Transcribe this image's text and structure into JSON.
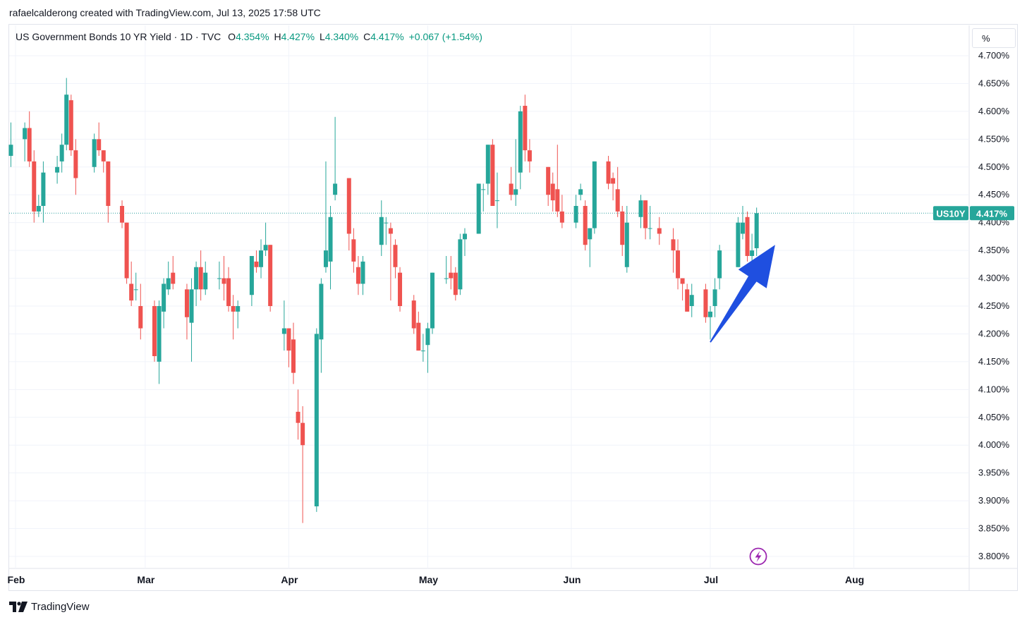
{
  "header": {
    "author_line": "rafaelcalderong created with TradingView.com, Jul 13, 2025 17:58 UTC"
  },
  "legend": {
    "symbol": "US Government Bonds 10 YR Yield · 1D · TVC",
    "o_label": "O",
    "o_value": "4.354%",
    "h_label": "H",
    "h_value": "4.427%",
    "l_label": "L",
    "l_value": "4.340%",
    "c_label": "C",
    "c_value": "4.417%",
    "change": "+0.067 (+1.54%)"
  },
  "scale_mode_button": "%",
  "price_tag": {
    "ticker": "US10Y",
    "value": "4.417%"
  },
  "footer": {
    "brand": "TradingView"
  },
  "colors": {
    "up": "#26a69a",
    "down": "#ef5350",
    "arrow": "#1f4fe0",
    "last_price_line": "#2a9d9e",
    "grid": "#f0f3fa",
    "lightning": "#9c27b0"
  },
  "icons": {
    "lightning": "lightning-icon",
    "logo": "tradingview-logo-icon"
  },
  "chart_data": {
    "type": "candlestick",
    "title": "US Government Bonds 10 YR Yield · 1D · TVC",
    "y_unit": "%",
    "ylim": [
      3.78,
      4.72
    ],
    "y_ticks": [
      "4.700%",
      "4.650%",
      "4.600%",
      "4.550%",
      "4.500%",
      "4.450%",
      "4.400%",
      "4.350%",
      "4.300%",
      "4.250%",
      "4.200%",
      "4.150%",
      "4.100%",
      "4.050%",
      "4.000%",
      "3.950%",
      "3.900%",
      "3.850%",
      "3.800%"
    ],
    "x_ticks": [
      {
        "label": "Feb",
        "date": "2025-02-01"
      },
      {
        "label": "Mar",
        "date": "2025-03-01"
      },
      {
        "label": "Apr",
        "date": "2025-04-01"
      },
      {
        "label": "May",
        "date": "2025-05-01"
      },
      {
        "label": "Jun",
        "date": "2025-06-01"
      },
      {
        "label": "Jul",
        "date": "2025-07-01"
      },
      {
        "label": "Aug",
        "date": "2025-08-01"
      }
    ],
    "last_price": 4.417,
    "candles": [
      {
        "date": "2025-01-31",
        "o": 4.52,
        "h": 4.58,
        "l": 4.5,
        "c": 4.54
      },
      {
        "date": "2025-02-03",
        "o": 4.55,
        "h": 4.58,
        "l": 4.51,
        "c": 4.57
      },
      {
        "date": "2025-02-04",
        "o": 4.57,
        "h": 4.6,
        "l": 4.5,
        "c": 4.51
      },
      {
        "date": "2025-02-05",
        "o": 4.51,
        "h": 4.53,
        "l": 4.4,
        "c": 4.42
      },
      {
        "date": "2025-02-06",
        "o": 4.42,
        "h": 4.45,
        "l": 4.41,
        "c": 4.43
      },
      {
        "date": "2025-02-07",
        "o": 4.43,
        "h": 4.51,
        "l": 4.4,
        "c": 4.49
      },
      {
        "date": "2025-02-10",
        "o": 4.49,
        "h": 4.52,
        "l": 4.47,
        "c": 4.5
      },
      {
        "date": "2025-02-11",
        "o": 4.51,
        "h": 4.56,
        "l": 4.49,
        "c": 4.54
      },
      {
        "date": "2025-02-12",
        "o": 4.54,
        "h": 4.66,
        "l": 4.53,
        "c": 4.63
      },
      {
        "date": "2025-02-13",
        "o": 4.62,
        "h": 4.63,
        "l": 4.52,
        "c": 4.53
      },
      {
        "date": "2025-02-14",
        "o": 4.53,
        "h": 4.55,
        "l": 4.45,
        "c": 4.48
      },
      {
        "date": "2025-02-18",
        "o": 4.5,
        "h": 4.56,
        "l": 4.49,
        "c": 4.55
      },
      {
        "date": "2025-02-19",
        "o": 4.55,
        "h": 4.58,
        "l": 4.52,
        "c": 4.53
      },
      {
        "date": "2025-02-20",
        "o": 4.53,
        "h": 4.53,
        "l": 4.49,
        "c": 4.51
      },
      {
        "date": "2025-02-21",
        "o": 4.51,
        "h": 4.51,
        "l": 4.4,
        "c": 4.43
      },
      {
        "date": "2025-02-24",
        "o": 4.43,
        "h": 4.44,
        "l": 4.39,
        "c": 4.4
      },
      {
        "date": "2025-02-25",
        "o": 4.4,
        "h": 4.4,
        "l": 4.29,
        "c": 4.3
      },
      {
        "date": "2025-02-26",
        "o": 4.29,
        "h": 4.33,
        "l": 4.25,
        "c": 4.26
      },
      {
        "date": "2025-02-27",
        "o": 4.28,
        "h": 4.31,
        "l": 4.26,
        "c": 4.28
      },
      {
        "date": "2025-02-28",
        "o": 4.25,
        "h": 4.29,
        "l": 4.19,
        "c": 4.21
      },
      {
        "date": "2025-03-03",
        "o": 4.25,
        "h": 4.26,
        "l": 4.15,
        "c": 4.16
      },
      {
        "date": "2025-03-04",
        "o": 4.15,
        "h": 4.26,
        "l": 4.11,
        "c": 4.25
      },
      {
        "date": "2025-03-05",
        "o": 4.24,
        "h": 4.3,
        "l": 4.21,
        "c": 4.29
      },
      {
        "date": "2025-03-06",
        "o": 4.28,
        "h": 4.33,
        "l": 4.27,
        "c": 4.3
      },
      {
        "date": "2025-03-07",
        "o": 4.31,
        "h": 4.34,
        "l": 4.28,
        "c": 4.29
      },
      {
        "date": "2025-03-10",
        "o": 4.28,
        "h": 4.29,
        "l": 4.19,
        "c": 4.23
      },
      {
        "date": "2025-03-11",
        "o": 4.22,
        "h": 4.3,
        "l": 4.15,
        "c": 4.28
      },
      {
        "date": "2025-03-12",
        "o": 4.28,
        "h": 4.33,
        "l": 4.25,
        "c": 4.32
      },
      {
        "date": "2025-03-13",
        "o": 4.32,
        "h": 4.35,
        "l": 4.26,
        "c": 4.28
      },
      {
        "date": "2025-03-14",
        "o": 4.28,
        "h": 4.33,
        "l": 4.27,
        "c": 4.31
      },
      {
        "date": "2025-03-17",
        "o": 4.3,
        "h": 4.33,
        "l": 4.28,
        "c": 4.3
      },
      {
        "date": "2025-03-18",
        "o": 4.3,
        "h": 4.34,
        "l": 4.26,
        "c": 4.29
      },
      {
        "date": "2025-03-19",
        "o": 4.3,
        "h": 4.32,
        "l": 4.24,
        "c": 4.25
      },
      {
        "date": "2025-03-20",
        "o": 4.25,
        "h": 4.27,
        "l": 4.19,
        "c": 4.24
      },
      {
        "date": "2025-03-21",
        "o": 4.24,
        "h": 4.26,
        "l": 4.21,
        "c": 4.25
      },
      {
        "date": "2025-03-24",
        "o": 4.27,
        "h": 4.34,
        "l": 4.25,
        "c": 4.34
      },
      {
        "date": "2025-03-25",
        "o": 4.33,
        "h": 4.35,
        "l": 4.31,
        "c": 4.32
      },
      {
        "date": "2025-03-26",
        "o": 4.32,
        "h": 4.37,
        "l": 4.3,
        "c": 4.35
      },
      {
        "date": "2025-03-27",
        "o": 4.35,
        "h": 4.4,
        "l": 4.34,
        "c": 4.36
      },
      {
        "date": "2025-03-28",
        "o": 4.36,
        "h": 4.36,
        "l": 4.24,
        "c": 4.25
      },
      {
        "date": "2025-03-31",
        "o": 4.2,
        "h": 4.26,
        "l": 4.17,
        "c": 4.21
      },
      {
        "date": "2025-04-01",
        "o": 4.21,
        "h": 4.21,
        "l": 4.14,
        "c": 4.17
      },
      {
        "date": "2025-04-02",
        "o": 4.19,
        "h": 4.22,
        "l": 4.11,
        "c": 4.13
      },
      {
        "date": "2025-04-03",
        "o": 4.06,
        "h": 4.1,
        "l": 4.01,
        "c": 4.04
      },
      {
        "date": "2025-04-04",
        "o": 4.04,
        "h": 4.07,
        "l": 3.86,
        "c": 4.0
      },
      {
        "date": "2025-04-07",
        "o": 3.89,
        "h": 4.21,
        "l": 3.88,
        "c": 4.2
      },
      {
        "date": "2025-04-08",
        "o": 4.19,
        "h": 4.3,
        "l": 4.13,
        "c": 4.29
      },
      {
        "date": "2025-04-09",
        "o": 4.32,
        "h": 4.51,
        "l": 4.31,
        "c": 4.35
      },
      {
        "date": "2025-04-10",
        "o": 4.33,
        "h": 4.43,
        "l": 4.28,
        "c": 4.41
      },
      {
        "date": "2025-04-11",
        "o": 4.45,
        "h": 4.59,
        "l": 4.44,
        "c": 4.47
      },
      {
        "date": "2025-04-14",
        "o": 4.48,
        "h": 4.48,
        "l": 4.35,
        "c": 4.38
      },
      {
        "date": "2025-04-15",
        "o": 4.37,
        "h": 4.39,
        "l": 4.31,
        "c": 4.33
      },
      {
        "date": "2025-04-16",
        "o": 4.32,
        "h": 4.34,
        "l": 4.27,
        "c": 4.29
      },
      {
        "date": "2025-04-17",
        "o": 4.29,
        "h": 4.34,
        "l": 4.27,
        "c": 4.33
      },
      {
        "date": "2025-04-21",
        "o": 4.36,
        "h": 4.44,
        "l": 4.34,
        "c": 4.41
      },
      {
        "date": "2025-04-22",
        "o": 4.4,
        "h": 4.41,
        "l": 4.36,
        "c": 4.4
      },
      {
        "date": "2025-04-23",
        "o": 4.39,
        "h": 4.4,
        "l": 4.26,
        "c": 4.38
      },
      {
        "date": "2025-04-24",
        "o": 4.36,
        "h": 4.37,
        "l": 4.3,
        "c": 4.32
      },
      {
        "date": "2025-04-25",
        "o": 4.31,
        "h": 4.32,
        "l": 4.24,
        "c": 4.25
      },
      {
        "date": "2025-04-28",
        "o": 4.26,
        "h": 4.27,
        "l": 4.2,
        "c": 4.21
      },
      {
        "date": "2025-04-29",
        "o": 4.22,
        "h": 4.24,
        "l": 4.17,
        "c": 4.17
      },
      {
        "date": "2025-04-30",
        "o": 4.17,
        "h": 4.2,
        "l": 4.15,
        "c": 4.17
      },
      {
        "date": "2025-05-01",
        "o": 4.18,
        "h": 4.22,
        "l": 4.13,
        "c": 4.21
      },
      {
        "date": "2025-05-02",
        "o": 4.21,
        "h": 4.31,
        "l": 4.2,
        "c": 4.31
      },
      {
        "date": "2025-05-05",
        "o": 4.3,
        "h": 4.34,
        "l": 4.29,
        "c": 4.3
      },
      {
        "date": "2025-05-06",
        "o": 4.31,
        "h": 4.34,
        "l": 4.28,
        "c": 4.3
      },
      {
        "date": "2025-05-07",
        "o": 4.31,
        "h": 4.32,
        "l": 4.26,
        "c": 4.27
      },
      {
        "date": "2025-05-08",
        "o": 4.28,
        "h": 4.38,
        "l": 4.27,
        "c": 4.37
      },
      {
        "date": "2025-05-09",
        "o": 4.37,
        "h": 4.39,
        "l": 4.34,
        "c": 4.38
      },
      {
        "date": "2025-05-12",
        "o": 4.38,
        "h": 4.47,
        "l": 4.38,
        "c": 4.47
      },
      {
        "date": "2025-05-13",
        "o": 4.46,
        "h": 4.47,
        "l": 4.42,
        "c": 4.46
      },
      {
        "date": "2025-05-14",
        "o": 4.47,
        "h": 4.54,
        "l": 4.45,
        "c": 4.54
      },
      {
        "date": "2025-05-15",
        "o": 4.54,
        "h": 4.55,
        "l": 4.43,
        "c": 4.43
      },
      {
        "date": "2025-05-16",
        "o": 4.44,
        "h": 4.49,
        "l": 4.39,
        "c": 4.44
      },
      {
        "date": "2025-05-19",
        "o": 4.47,
        "h": 4.5,
        "l": 4.44,
        "c": 4.45
      },
      {
        "date": "2025-05-20",
        "o": 4.45,
        "h": 4.55,
        "l": 4.43,
        "c": 4.46
      },
      {
        "date": "2025-05-21",
        "o": 4.49,
        "h": 4.61,
        "l": 4.46,
        "c": 4.6
      },
      {
        "date": "2025-05-22",
        "o": 4.61,
        "h": 4.63,
        "l": 4.51,
        "c": 4.53
      },
      {
        "date": "2025-05-23",
        "o": 4.53,
        "h": 4.55,
        "l": 4.49,
        "c": 4.51
      },
      {
        "date": "2025-05-27",
        "o": 4.5,
        "h": 4.5,
        "l": 4.43,
        "c": 4.45
      },
      {
        "date": "2025-05-28",
        "o": 4.47,
        "h": 4.49,
        "l": 4.42,
        "c": 4.44
      },
      {
        "date": "2025-05-29",
        "o": 4.46,
        "h": 4.54,
        "l": 4.41,
        "c": 4.42
      },
      {
        "date": "2025-05-30",
        "o": 4.42,
        "h": 4.45,
        "l": 4.39,
        "c": 4.4
      },
      {
        "date": "2025-06-02",
        "o": 4.4,
        "h": 4.45,
        "l": 4.39,
        "c": 4.43
      },
      {
        "date": "2025-06-03",
        "o": 4.45,
        "h": 4.47,
        "l": 4.44,
        "c": 4.46
      },
      {
        "date": "2025-06-04",
        "o": 4.43,
        "h": 4.44,
        "l": 4.35,
        "c": 4.36
      },
      {
        "date": "2025-06-05",
        "o": 4.37,
        "h": 4.39,
        "l": 4.32,
        "c": 4.39
      },
      {
        "date": "2025-06-06",
        "o": 4.39,
        "h": 4.51,
        "l": 4.38,
        "c": 4.51
      },
      {
        "date": "2025-06-09",
        "o": 4.51,
        "h": 4.52,
        "l": 4.46,
        "c": 4.47
      },
      {
        "date": "2025-06-10",
        "o": 4.48,
        "h": 4.49,
        "l": 4.44,
        "c": 4.47
      },
      {
        "date": "2025-06-11",
        "o": 4.46,
        "h": 4.5,
        "l": 4.41,
        "c": 4.42
      },
      {
        "date": "2025-06-12",
        "o": 4.42,
        "h": 4.43,
        "l": 4.34,
        "c": 4.36
      },
      {
        "date": "2025-06-13",
        "o": 4.32,
        "h": 4.43,
        "l": 4.31,
        "c": 4.4
      },
      {
        "date": "2025-06-16",
        "o": 4.41,
        "h": 4.45,
        "l": 4.39,
        "c": 4.44
      },
      {
        "date": "2025-06-17",
        "o": 4.44,
        "h": 4.44,
        "l": 4.37,
        "c": 4.39
      },
      {
        "date": "2025-06-18",
        "o": 4.39,
        "h": 4.43,
        "l": 4.37,
        "c": 4.39
      },
      {
        "date": "2025-06-20",
        "o": 4.39,
        "h": 4.41,
        "l": 4.36,
        "c": 4.38
      },
      {
        "date": "2025-06-23",
        "o": 4.37,
        "h": 4.39,
        "l": 4.31,
        "c": 4.35
      },
      {
        "date": "2025-06-24",
        "o": 4.35,
        "h": 4.37,
        "l": 4.28,
        "c": 4.3
      },
      {
        "date": "2025-06-25",
        "o": 4.3,
        "h": 4.3,
        "l": 4.26,
        "c": 4.29
      },
      {
        "date": "2025-06-26",
        "o": 4.28,
        "h": 4.29,
        "l": 4.24,
        "c": 4.24
      },
      {
        "date": "2025-06-27",
        "o": 4.25,
        "h": 4.29,
        "l": 4.23,
        "c": 4.27
      },
      {
        "date": "2025-06-30",
        "o": 4.28,
        "h": 4.29,
        "l": 4.22,
        "c": 4.23
      },
      {
        "date": "2025-07-01",
        "o": 4.23,
        "h": 4.25,
        "l": 4.19,
        "c": 4.24
      },
      {
        "date": "2025-07-02",
        "o": 4.25,
        "h": 4.3,
        "l": 4.23,
        "c": 4.28
      },
      {
        "date": "2025-07-03",
        "o": 4.3,
        "h": 4.36,
        "l": 4.28,
        "c": 4.35
      },
      {
        "date": "2025-07-07",
        "o": 4.32,
        "h": 4.41,
        "l": 4.32,
        "c": 4.4
      },
      {
        "date": "2025-07-08",
        "o": 4.38,
        "h": 4.43,
        "l": 4.37,
        "c": 4.4
      },
      {
        "date": "2025-07-09",
        "o": 4.41,
        "h": 4.42,
        "l": 4.33,
        "c": 4.34
      },
      {
        "date": "2025-07-10",
        "o": 4.34,
        "h": 4.38,
        "l": 4.33,
        "c": 4.35
      },
      {
        "date": "2025-07-11",
        "o": 4.354,
        "h": 4.427,
        "l": 4.34,
        "c": 4.417
      }
    ],
    "annotations": [
      {
        "type": "arrow",
        "direction": "up-right",
        "from": {
          "date": "2025-07-01",
          "value": 4.185
        },
        "to": {
          "date": "2025-07-15",
          "value": 4.36
        }
      }
    ]
  }
}
